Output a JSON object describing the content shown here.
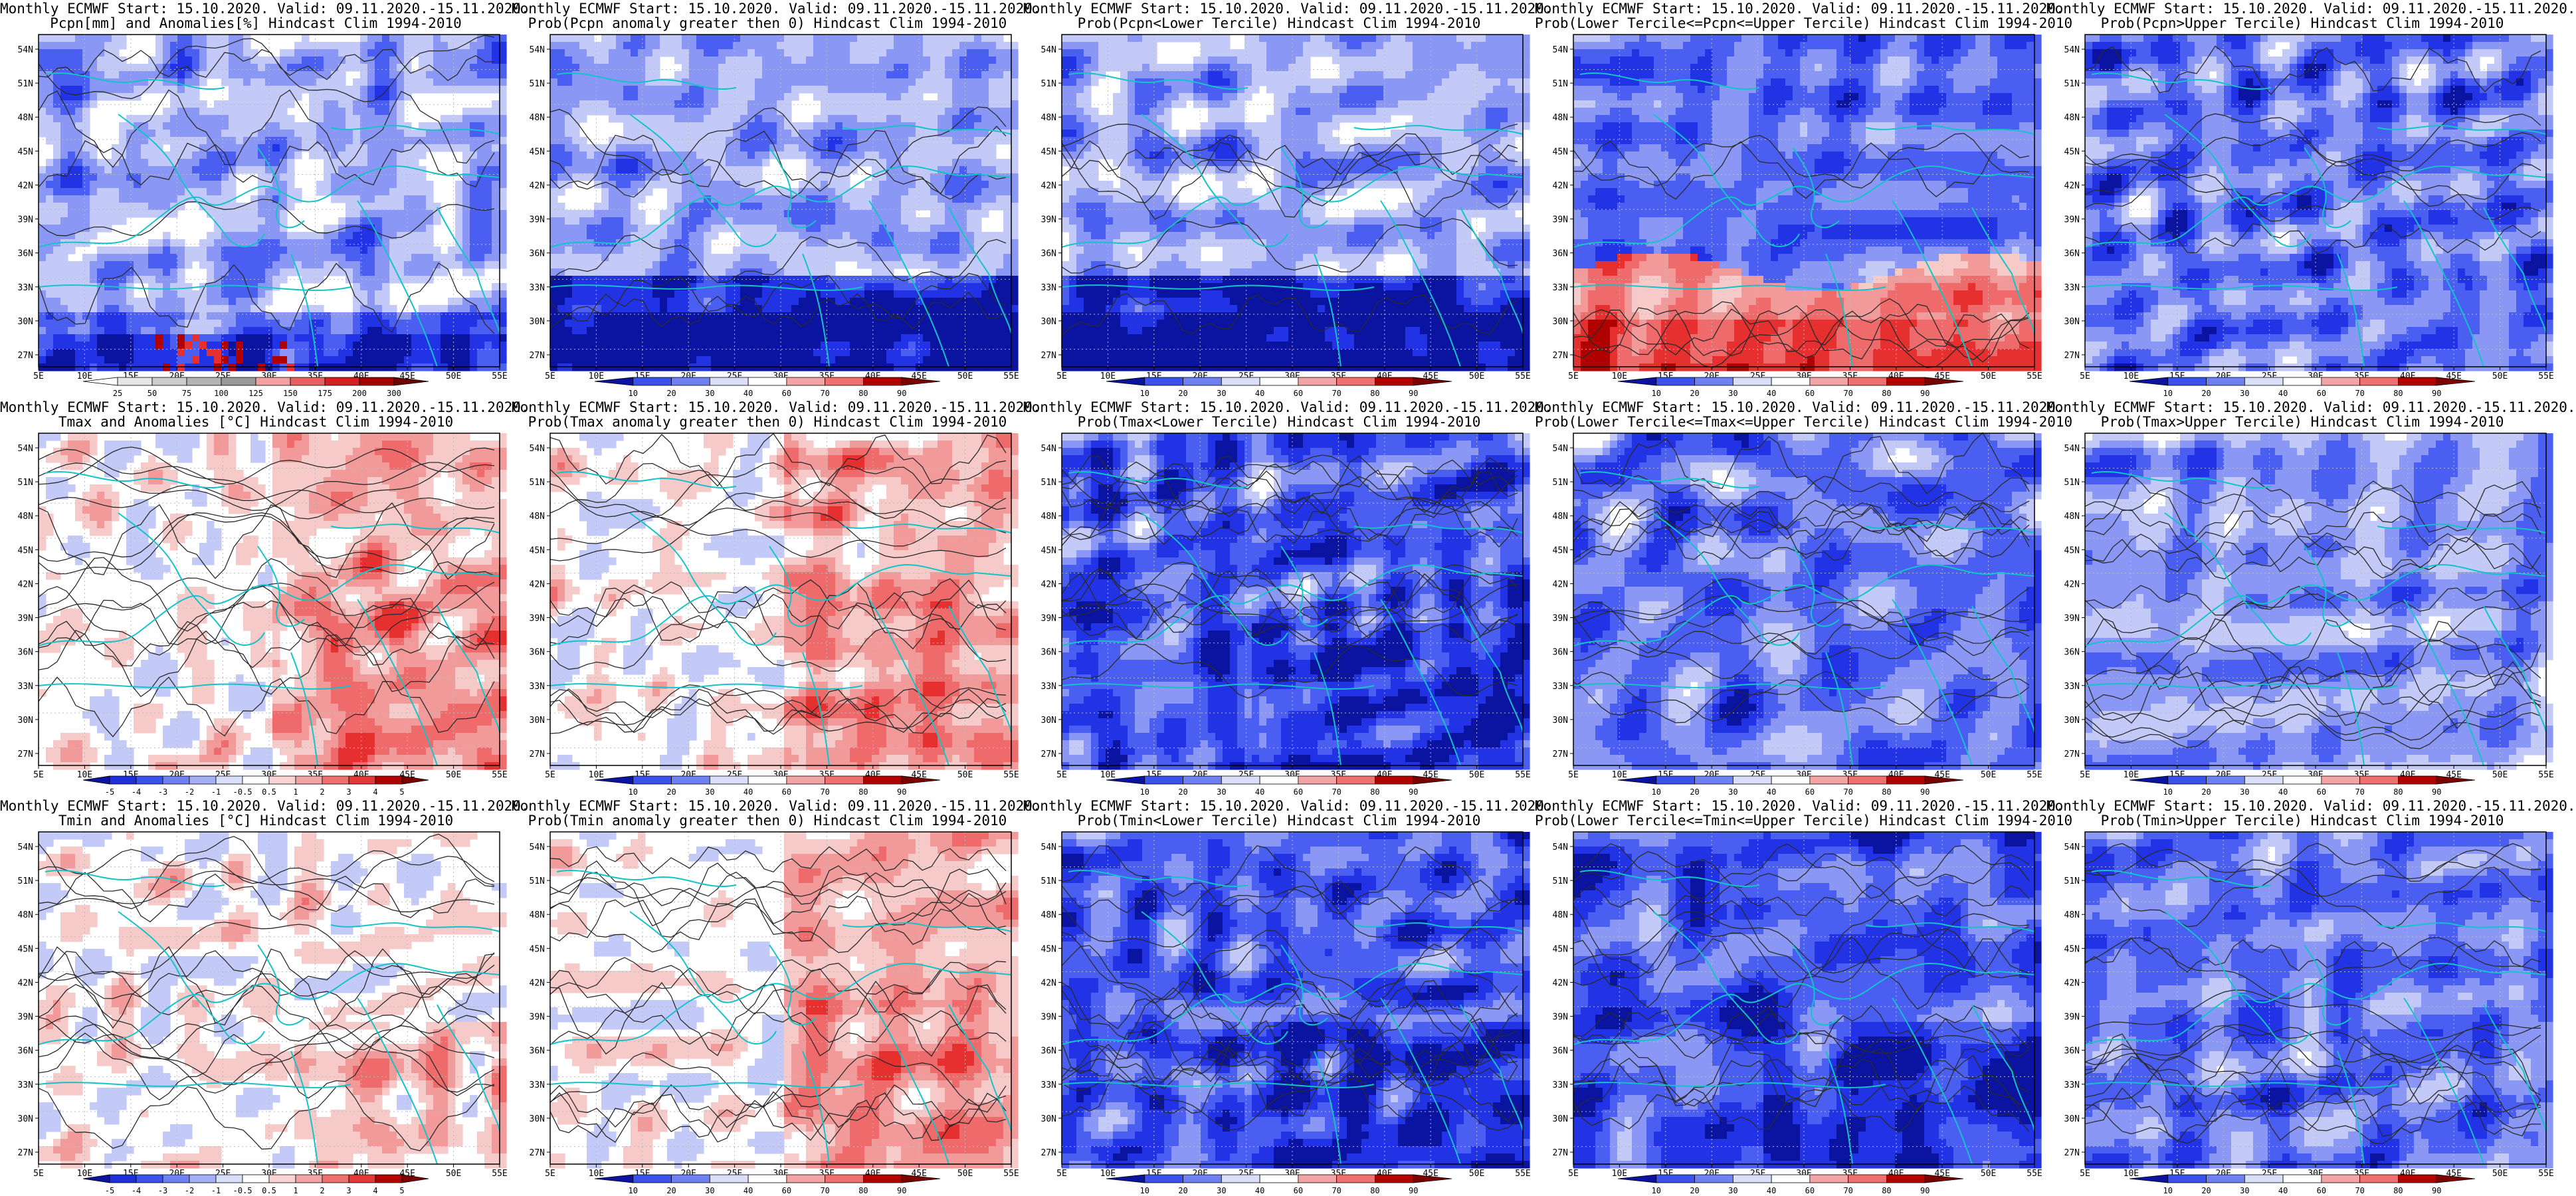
{
  "common": {
    "header": "Monthly ECMWF Start: 15.10.2020. Valid: 09.11.2020.-15.11.2020.",
    "lat_ticks": [
      "54N",
      "51N",
      "48N",
      "45N",
      "42N",
      "39N",
      "36N",
      "33N",
      "30N",
      "27N"
    ],
    "lon_ticks": [
      "5E",
      "10E",
      "15E",
      "20E",
      "25E",
      "30E",
      "35E",
      "40E",
      "45E",
      "50E",
      "55E"
    ],
    "colors": {
      "coast": "#14c3c8",
      "contour": "#2a2a2a",
      "blue_scale": [
        "#0a14a0",
        "#2233e6",
        "#4a5ff2",
        "#8a97f5",
        "#c4caf8",
        "#ffffff"
      ],
      "red_scale": [
        "#ffffff",
        "#f7caca",
        "#f29a9a",
        "#ef6a6a",
        "#e63030",
        "#b00000"
      ]
    }
  },
  "panels": [
    {
      "id": "pcpn-anom",
      "title": "Pcpn[mm] and Anomalies[%] Hindcast Clim 1994-2010",
      "style": "prec",
      "colorbar": [
        "25",
        "50",
        "75",
        "100",
        "125",
        "150",
        "175",
        "200",
        "300"
      ]
    },
    {
      "id": "pcpn-prob-gt0",
      "title": "Prob(Pcpn anomaly greater then 0) Hindcast Clim 1994-2010",
      "style": "blue-south",
      "colorbar": [
        "10",
        "20",
        "30",
        "40",
        "60",
        "70",
        "80",
        "90"
      ]
    },
    {
      "id": "pcpn-lower",
      "title": "Prob(Pcpn<Lower Tercile) Hindcast Clim 1994-2010",
      "style": "blue-south",
      "colorbar": [
        "10",
        "20",
        "30",
        "40",
        "60",
        "70",
        "80",
        "90"
      ]
    },
    {
      "id": "pcpn-middle",
      "title": "Prob(Lower Tercile<=Pcpn<=Upper Tercile) Hindcast Clim 1994-2010",
      "style": "red-south",
      "colorbar": [
        "10",
        "20",
        "30",
        "40",
        "60",
        "70",
        "80",
        "90"
      ]
    },
    {
      "id": "pcpn-upper",
      "title": "Prob(Pcpn>Upper Tercile) Hindcast Clim 1994-2010",
      "style": "blue-mid",
      "colorbar": [
        "10",
        "20",
        "30",
        "40",
        "60",
        "70",
        "80",
        "90"
      ]
    },
    {
      "id": "tmax-anom",
      "title": "Tmax and Anomalies [°C] Hindcast Clim 1994-2010",
      "style": "red-east",
      "colorbar": [
        "-5",
        "-4",
        "-3",
        "-2",
        "-1",
        "-0.5",
        "0.5",
        "1",
        "2",
        "3",
        "4",
        "5"
      ]
    },
    {
      "id": "tmax-prob-gt0",
      "title": "Prob(Tmax anomaly greater then 0) Hindcast Clim 1994-2010",
      "style": "red-east",
      "colorbar": [
        "10",
        "20",
        "30",
        "40",
        "60",
        "70",
        "80",
        "90"
      ]
    },
    {
      "id": "tmax-lower",
      "title": "Prob(Tmax<Lower Tercile) Hindcast Clim 1994-2010",
      "style": "blue-strong",
      "colorbar": [
        "10",
        "20",
        "30",
        "40",
        "60",
        "70",
        "80",
        "90"
      ]
    },
    {
      "id": "tmax-middle",
      "title": "Prob(Lower Tercile<=Tmax<=Upper Tercile) Hindcast Clim 1994-2010",
      "style": "blue-mid",
      "colorbar": [
        "10",
        "20",
        "30",
        "40",
        "60",
        "70",
        "80",
        "90"
      ]
    },
    {
      "id": "tmax-upper",
      "title": "Prob(Tmax>Upper Tercile) Hindcast Clim 1994-2010",
      "style": "blue-light",
      "colorbar": [
        "10",
        "20",
        "30",
        "40",
        "60",
        "70",
        "80",
        "90"
      ]
    },
    {
      "id": "tmin-anom",
      "title": "Tmin and Anomalies [°C] Hindcast Clim 1994-2010",
      "style": "red-light",
      "colorbar": [
        "-5",
        "-4",
        "-3",
        "-2",
        "-1",
        "-0.5",
        "0.5",
        "1",
        "2",
        "3",
        "4",
        "5"
      ]
    },
    {
      "id": "tmin-prob-gt0",
      "title": "Prob(Tmin anomaly greater then 0) Hindcast Clim 1994-2010",
      "style": "red-east",
      "colorbar": [
        "10",
        "20",
        "30",
        "40",
        "60",
        "70",
        "80",
        "90"
      ]
    },
    {
      "id": "tmin-lower",
      "title": "Prob(Tmin<Lower Tercile) Hindcast Clim 1994-2010",
      "style": "blue-strong",
      "colorbar": [
        "10",
        "20",
        "30",
        "40",
        "60",
        "70",
        "80",
        "90"
      ]
    },
    {
      "id": "tmin-middle",
      "title": "Prob(Lower Tercile<=Tmin<=Upper Tercile) Hindcast Clim 1994-2010",
      "style": "blue-strong",
      "colorbar": [
        "10",
        "20",
        "30",
        "40",
        "60",
        "70",
        "80",
        "90"
      ]
    },
    {
      "id": "tmin-upper",
      "title": "Prob(Tmin>Upper Tercile) Hindcast Clim 1994-2010",
      "style": "blue-mid",
      "colorbar": [
        "10",
        "20",
        "30",
        "40",
        "60",
        "70",
        "80",
        "90"
      ]
    }
  ]
}
